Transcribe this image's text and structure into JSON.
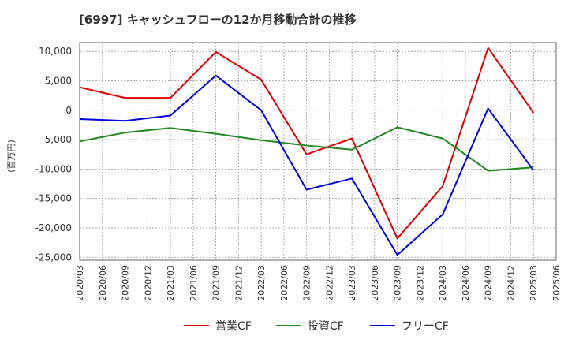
{
  "chart_data": {
    "type": "line",
    "title": "[6997]  キャッシュフローの12か月移動合計の推移",
    "ylabel": "(百万円)",
    "xlabel": "",
    "ylim": [
      -25500,
      11500
    ],
    "yticks": [
      10000,
      5000,
      0,
      -5000,
      -10000,
      -15000,
      -20000,
      -25000
    ],
    "ytick_labels": [
      "10,000",
      "5,000",
      "0",
      "-5,000",
      "-10,000",
      "-15,000",
      "-20,000",
      "-25,000"
    ],
    "x_labels": [
      "2020/03",
      "2020/06",
      "2020/09",
      "2020/12",
      "2021/03",
      "2021/06",
      "2021/09",
      "2021/12",
      "2022/03",
      "2022/06",
      "2022/09",
      "2022/12",
      "2023/03",
      "2023/06",
      "2023/09",
      "2023/12",
      "2024/03",
      "2024/06",
      "2024/09",
      "2024/12",
      "2025/03",
      "2025/06"
    ],
    "grid": true,
    "legend_position": "bottom",
    "series": [
      {
        "name": "営業CF",
        "color": "#dd0000",
        "x": [
          "2020/03",
          "2020/09",
          "2021/03",
          "2021/09",
          "2022/03",
          "2022/09",
          "2023/03",
          "2023/09",
          "2024/03",
          "2024/09",
          "2025/03"
        ],
        "values": [
          3900,
          2100,
          2100,
          9900,
          5200,
          -7500,
          -4800,
          -21800,
          -12900,
          10600,
          -400
        ]
      },
      {
        "name": "投資CF",
        "color": "#228822",
        "x": [
          "2020/03",
          "2020/09",
          "2021/03",
          "2021/09",
          "2022/03",
          "2022/09",
          "2023/03",
          "2023/09",
          "2024/03",
          "2024/09",
          "2025/03"
        ],
        "values": [
          -5300,
          -3800,
          -3000,
          -4000,
          -5100,
          -6000,
          -6700,
          -2900,
          -4800,
          -10300,
          -9700
        ]
      },
      {
        "name": "フリーCF",
        "color": "#0000dd",
        "x": [
          "2020/03",
          "2020/09",
          "2021/03",
          "2021/09",
          "2022/03",
          "2022/09",
          "2023/03",
          "2023/09",
          "2024/03",
          "2024/09",
          "2025/03"
        ],
        "values": [
          -1500,
          -1800,
          -900,
          5900,
          0,
          -13500,
          -11600,
          -24600,
          -17700,
          300,
          -10200
        ]
      }
    ]
  }
}
